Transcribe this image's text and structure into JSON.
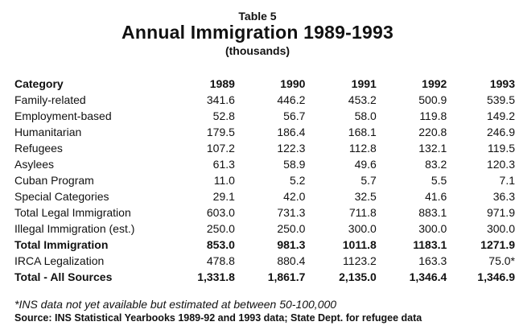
{
  "header": {
    "table_label": "Table 5",
    "title": "Annual Immigration 1989-1993",
    "units": "(thousands)"
  },
  "table": {
    "columns": [
      "Category",
      "1989",
      "1990",
      "1991",
      "1992",
      "1993"
    ],
    "rows": [
      {
        "label": "Family-related",
        "values": [
          "341.6",
          "446.2",
          "453.2",
          "500.9",
          "539.5"
        ]
      },
      {
        "label": "Employment-based",
        "values": [
          "52.8",
          "56.7",
          "58.0",
          "119.8",
          "149.2"
        ]
      },
      {
        "label": "Humanitarian",
        "values": [
          "179.5",
          "186.4",
          "168.1",
          "220.8",
          "246.9"
        ]
      },
      {
        "label": "Refugees",
        "values": [
          "107.2",
          "122.3",
          "112.8",
          "132.1",
          "119.5"
        ]
      },
      {
        "label": "Asylees",
        "values": [
          "61.3",
          "58.9",
          "49.6",
          "83.2",
          "120.3"
        ]
      },
      {
        "label": "Cuban Program",
        "values": [
          "11.0",
          "5.2",
          "5.7",
          "5.5",
          "7.1"
        ]
      },
      {
        "label": "Special Categories",
        "values": [
          "29.1",
          "42.0",
          "32.5",
          "41.6",
          "36.3"
        ]
      },
      {
        "label": "Total Legal Immigration",
        "values": [
          "603.0",
          "731.3",
          "711.8",
          "883.1",
          "971.9"
        ]
      },
      {
        "label": "Illegal Immigration (est.)",
        "values": [
          "250.0",
          "250.0",
          "300.0",
          "300.0",
          "300.0"
        ]
      },
      {
        "label": "Total Immigration",
        "values": [
          "853.0",
          "981.3",
          "1011.8",
          "1183.1",
          "1271.9"
        ]
      },
      {
        "label": "IRCA Legalization",
        "values": [
          "478.8",
          "880.4",
          "1123.2",
          "163.3",
          "75.0*"
        ]
      },
      {
        "label": "Total - All Sources",
        "values": [
          "1,331.8",
          "1,861.7",
          "2,135.0",
          "1,346.4",
          "1,346.9"
        ]
      }
    ]
  },
  "footnote": "*INS data not yet available but estimated at between 50-100,000",
  "source": "Source: INS Statistical Yearbooks 1989-92 and 1993 data; State Dept. for refugee data"
}
